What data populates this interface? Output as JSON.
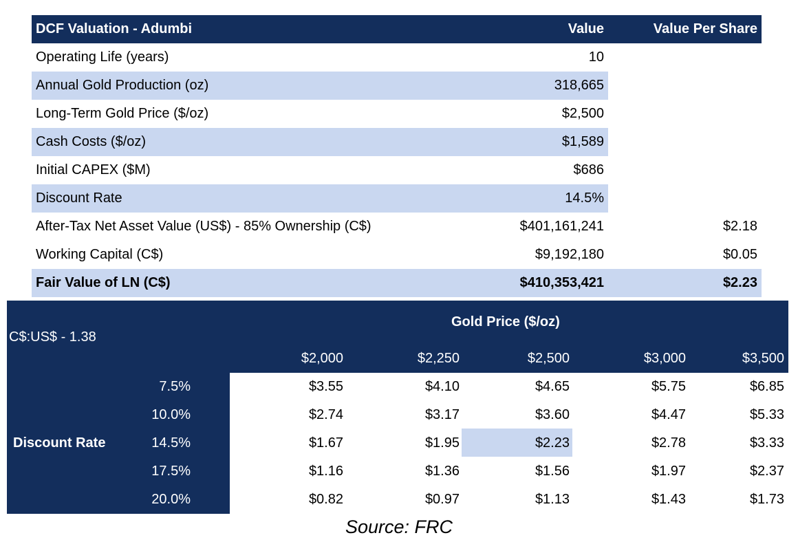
{
  "dcf": {
    "header": {
      "title": "DCF Valuation - Adumbi",
      "value": "Value",
      "per_share": "Value Per Share"
    },
    "rows": [
      {
        "label": "Operating Life (years)",
        "value": "10",
        "per_share": ""
      },
      {
        "label": "Annual Gold Production (oz)",
        "value": "318,665",
        "per_share": ""
      },
      {
        "label": "Long-Term Gold Price ($/oz)",
        "value": "$2,500",
        "per_share": ""
      },
      {
        "label": "Cash Costs ($/oz)",
        "value": "$1,589",
        "per_share": ""
      },
      {
        "label": "Initial CAPEX ($M)",
        "value": "$686",
        "per_share": ""
      },
      {
        "label": "Discount Rate",
        "value": "14.5%",
        "per_share": ""
      },
      {
        "label": "After-Tax Net Asset Value (US$)  - 85% Ownership (C$)",
        "value": "$401,161,241",
        "per_share": "$2.18"
      },
      {
        "label": "Working Capital (C$)",
        "value": "$9,192,180",
        "per_share": "$0.05"
      },
      {
        "label": "Fair Value of LN (C$)",
        "value": "$410,353,421",
        "per_share": "$2.23"
      }
    ]
  },
  "sensitivity": {
    "fx_label": "C$:US$ - 1.38",
    "col_title": "Gold Price ($/oz)",
    "row_title": "Discount Rate",
    "columns": [
      "$2,000",
      "$2,250",
      "$2,500",
      "$3,000",
      "$3,500"
    ],
    "rows": [
      {
        "rate": "7.5%",
        "values": [
          "$3.55",
          "$4.10",
          "$4.65",
          "$5.75",
          "$6.85"
        ]
      },
      {
        "rate": "10.0%",
        "values": [
          "$2.74",
          "$3.17",
          "$3.60",
          "$4.47",
          "$5.33"
        ]
      },
      {
        "rate": "14.5%",
        "values": [
          "$1.67",
          "$1.95",
          "$2.23",
          "$2.78",
          "$3.33"
        ]
      },
      {
        "rate": "17.5%",
        "values": [
          "$1.16",
          "$1.36",
          "$1.56",
          "$1.97",
          "$2.37"
        ]
      },
      {
        "rate": "20.0%",
        "values": [
          "$0.82",
          "$0.97",
          "$1.13",
          "$1.43",
          "$1.73"
        ]
      }
    ]
  },
  "source": "Source: FRC"
}
